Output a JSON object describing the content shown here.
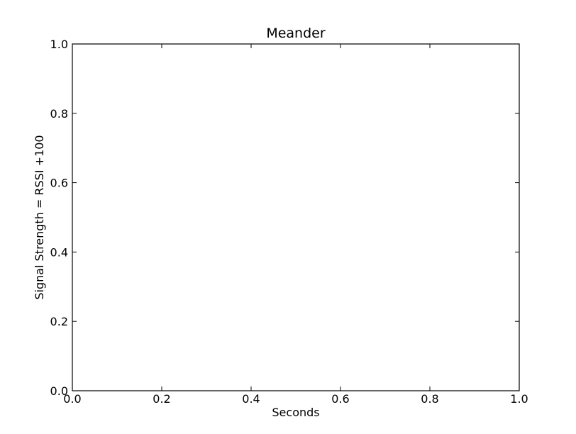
{
  "chart_data": {
    "type": "line",
    "title": "Meander",
    "xlabel": "Seconds",
    "ylabel": "Signal Strength  = RSSI +100",
    "xlim": [
      0.0,
      1.0
    ],
    "ylim": [
      0.0,
      1.0
    ],
    "x_ticks": [
      "0.0",
      "0.2",
      "0.4",
      "0.6",
      "0.8",
      "1.0"
    ],
    "y_ticks": [
      "0.0",
      "0.2",
      "0.4",
      "0.6",
      "0.8",
      "1.0"
    ],
    "series": [],
    "grid": false,
    "colors": {
      "axes": "#000000",
      "background": "#ffffff"
    }
  }
}
